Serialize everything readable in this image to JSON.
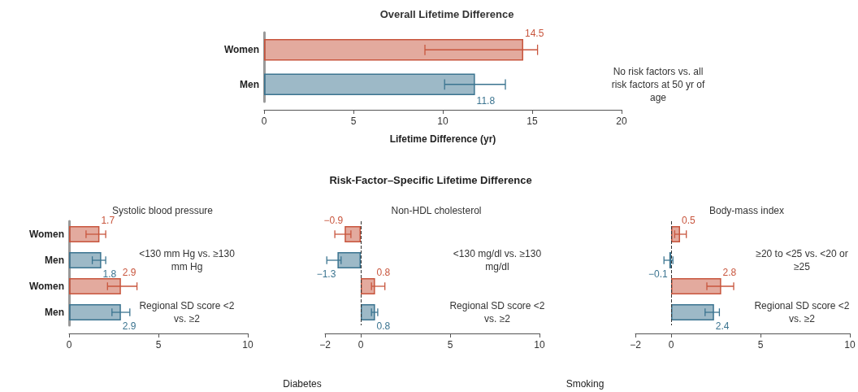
{
  "chart_data": [
    {
      "type": "bar",
      "orientation": "horizontal",
      "title": "Overall Lifetime Difference",
      "xlabel": "Lifetime Difference (yr)",
      "categories": [
        "Women",
        "Men"
      ],
      "values": [
        14.5,
        11.8
      ],
      "colors": [
        "#c8553d",
        "#3b7490"
      ],
      "errors": [
        [
          9.0,
          15.3
        ],
        [
          10.1,
          13.5
        ]
      ],
      "value_labels": [
        "14.5",
        "11.8"
      ],
      "xlim": [
        0,
        20
      ],
      "xticks": [
        0,
        5,
        10,
        15,
        20
      ],
      "annotations": [
        "No risk factors vs. all risk factors at 50 yr of age"
      ]
    },
    {
      "type": "other",
      "title": "Risk-Factor–Specific Lifetime Difference"
    },
    {
      "type": "bar",
      "orientation": "horizontal",
      "title": "Systolic blood pressure",
      "categories": [
        "Women",
        "Men",
        "Women",
        "Men"
      ],
      "values": [
        1.7,
        1.8,
        2.9,
        2.9
      ],
      "colors": [
        "#c8553d",
        "#3b7490",
        "#c8553d",
        "#3b7490"
      ],
      "errors": [
        [
          0.95,
          2.05
        ],
        [
          1.3,
          2.05
        ],
        [
          2.15,
          3.8
        ],
        [
          2.4,
          3.4
        ]
      ],
      "value_labels": [
        "1.7",
        "1.8",
        "2.9",
        "2.9"
      ],
      "xlim": [
        0,
        10
      ],
      "xticks": [
        0,
        5,
        10
      ],
      "annotations": [
        "<130 mm Hg vs. ≥130 mm Hg",
        "Regional SD score <2 vs. ≥2"
      ]
    },
    {
      "type": "bar",
      "orientation": "horizontal",
      "title": "Non-HDL cholesterol",
      "categories": [
        null,
        null,
        null,
        null
      ],
      "values": [
        -0.9,
        -1.3,
        0.8,
        0.8
      ],
      "colors": [
        "#c8553d",
        "#3b7490",
        "#c8553d",
        "#3b7490"
      ],
      "errors": [
        [
          -1.45,
          -0.55
        ],
        [
          -1.9,
          -1.1
        ],
        [
          0.6,
          1.35
        ],
        [
          0.6,
          0.95
        ]
      ],
      "value_labels": [
        "−0.9",
        "−1.3",
        "0.8",
        "0.8"
      ],
      "xlim": [
        -2,
        10
      ],
      "xticks": [
        -2,
        0,
        5,
        10
      ],
      "ref_lines": [
        {
          "axis": "x",
          "value": 0,
          "line_style": "dashed"
        }
      ],
      "annotations": [
        "<130 mg/dl vs. ≥130 mg/dl",
        "Regional SD score <2 vs. ≥2"
      ]
    },
    {
      "type": "bar",
      "orientation": "horizontal",
      "title": "Body-mass index",
      "categories": [
        null,
        null,
        null,
        null
      ],
      "values": [
        0.5,
        -0.1,
        2.8,
        2.4
      ],
      "colors": [
        "#c8553d",
        "#3b7490",
        "#c8553d",
        "#3b7490"
      ],
      "errors": [
        [
          0.2,
          0.85
        ],
        [
          -0.4,
          0.1
        ],
        [
          2.0,
          3.5
        ],
        [
          1.9,
          2.7
        ]
      ],
      "value_labels": [
        "0.5",
        "−0.1",
        "2.8",
        "2.4"
      ],
      "xlim": [
        -2,
        10
      ],
      "xticks": [
        -2,
        0,
        5,
        10
      ],
      "ref_lines": [
        {
          "axis": "x",
          "value": 0,
          "line_style": "dashed"
        }
      ],
      "annotations": [
        "≥20 to <25 vs. <20 or ≥25",
        "Regional SD score <2 vs. ≥2"
      ]
    },
    {
      "type": "other",
      "title": "Diabetes"
    },
    {
      "type": "other",
      "title": "Smoking"
    }
  ]
}
